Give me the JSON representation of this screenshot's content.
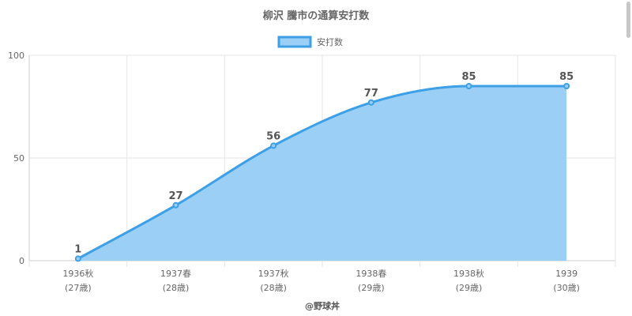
{
  "chart_data": {
    "type": "area",
    "title": "柳沢 騰市の通算安打数",
    "legend": {
      "label": "安打数",
      "placement": "top"
    },
    "categories": [
      {
        "line1": "1936秋",
        "line2": "(27歳)"
      },
      {
        "line1": "1937春",
        "line2": "(28歳)"
      },
      {
        "line1": "1937秋",
        "line2": "(28歳)"
      },
      {
        "line1": "1938春",
        "line2": "(29歳)"
      },
      {
        "line1": "1938秋",
        "line2": "(29歳)"
      },
      {
        "line1": "1939",
        "line2": "(30歳)"
      }
    ],
    "series": [
      {
        "name": "安打数",
        "values": [
          1,
          27,
          56,
          77,
          85,
          85
        ]
      }
    ],
    "ylim": [
      0,
      100
    ],
    "yticks": [
      0,
      50,
      100
    ],
    "grid": true,
    "colors": {
      "line": "#3d9fe6",
      "fill": "#9ccff5",
      "point": "#3d9fe6"
    }
  },
  "credit": "@野球丼"
}
